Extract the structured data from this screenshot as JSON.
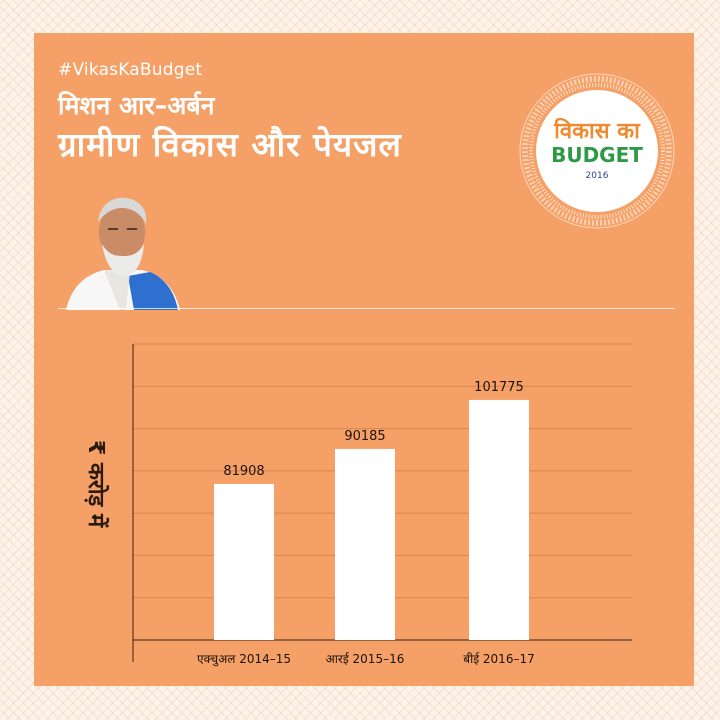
{
  "header": {
    "hashtag": "#VikasKaBudget",
    "subtitle": "मिशन आर–अर्बन",
    "title": "ग्रामीण विकास और पेयजल"
  },
  "badge": {
    "line1": "विकास का",
    "line2": "BUDGET",
    "year": "2016"
  },
  "colors": {
    "panel": "#f5a066",
    "bar": "#ffffff",
    "badge_orange": "#f08a2e",
    "badge_green": "#2e9a46",
    "badge_blue": "#2f3f8f"
  },
  "chart_data": {
    "type": "bar",
    "categories": [
      "एक्चुअल 2014–15",
      "आरई 2015–16",
      "बीई 2016–17"
    ],
    "values": [
      81908,
      90185,
      101775
    ],
    "data_labels": [
      "81908",
      "90185",
      "101775"
    ],
    "ylabel": "₹ करोड़ में",
    "xlabel": "",
    "ylim": [
      45000,
      115000
    ],
    "grid": true,
    "legend": "none"
  }
}
